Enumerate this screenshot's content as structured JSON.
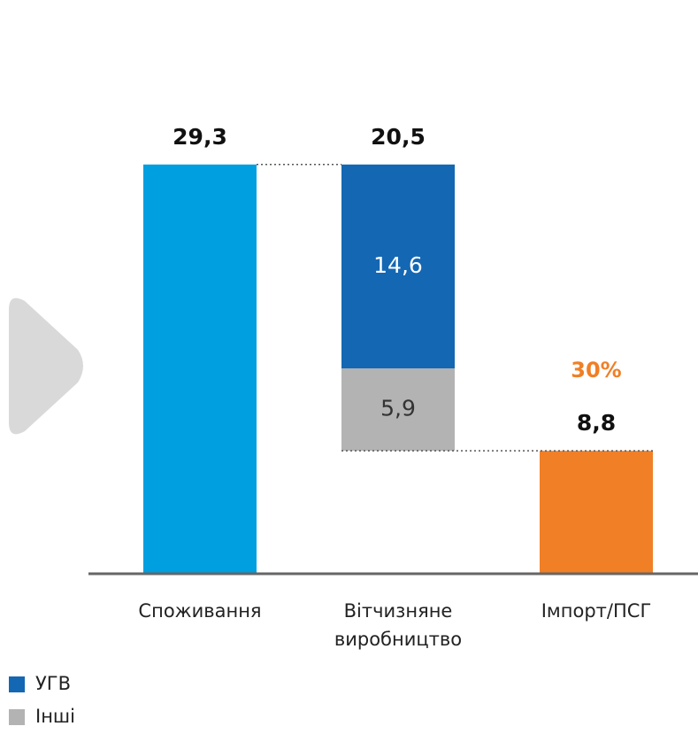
{
  "chart_data": {
    "type": "waterfall",
    "categories": [
      "Споживання",
      "Вітчизняне виробництво",
      "Імпорт/ПСГ"
    ],
    "totals": [
      29.3,
      20.5,
      8.8
    ],
    "total_labels": [
      "29,3",
      "20,5",
      "8,8"
    ],
    "total_colors": [
      "#009fe0",
      null,
      "#f07f26"
    ],
    "series": [
      {
        "name": "УГВ",
        "color": "#1467b3",
        "values": [
          null,
          14.6,
          null
        ],
        "value_labels": [
          null,
          "14,6",
          null
        ]
      },
      {
        "name": "Інші",
        "color": "#b3b3b3",
        "values": [
          null,
          5.9,
          null
        ],
        "value_labels": [
          null,
          "5,9",
          null
        ]
      }
    ],
    "annotations": [
      {
        "text": "30%",
        "category": 2,
        "color": "#f07f26"
      }
    ],
    "ylim": [
      0,
      40
    ]
  }
}
